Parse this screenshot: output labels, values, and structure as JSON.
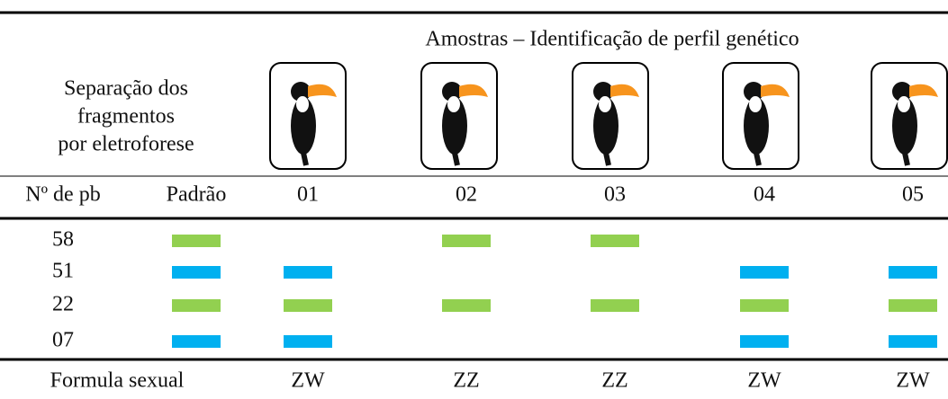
{
  "header": {
    "title": "Amostras – Identificação de perfil genético",
    "left_label": [
      "Separação dos",
      "fragmentos",
      "por eletroforese"
    ]
  },
  "table": {
    "columns": [
      "Nº de  pb",
      "Padrão",
      "01",
      "02",
      "03",
      "04",
      "05"
    ],
    "rows": [
      {
        "pb": "58",
        "color": "#92d050",
        "bands": [
          true,
          false,
          true,
          true,
          false,
          false
        ]
      },
      {
        "pb": "51",
        "color": "#00b0f0",
        "bands": [
          true,
          true,
          false,
          false,
          true,
          true
        ]
      },
      {
        "pb": "22",
        "color": "#92d050",
        "bands": [
          true,
          true,
          true,
          true,
          true,
          true
        ]
      },
      {
        "pb": "07",
        "color": "#00b0f0",
        "bands": [
          true,
          true,
          false,
          false,
          true,
          true
        ]
      }
    ],
    "footer": [
      "Formula sexual",
      "ZW",
      "ZZ",
      "ZZ",
      "ZW",
      "ZW"
    ]
  }
}
